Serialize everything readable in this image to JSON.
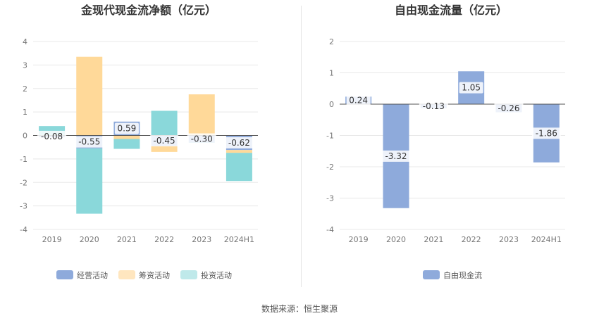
{
  "source_text": "数据来源：恒生聚源",
  "chart_data": [
    {
      "type": "bar",
      "stacked": true,
      "title": "金现代现金流净额（亿元）",
      "categories": [
        "2019",
        "2020",
        "2021",
        "2022",
        "2023",
        "2024H1"
      ],
      "ylim": [
        -4,
        4
      ],
      "yticks": [
        4,
        3,
        2,
        1,
        0,
        -1,
        -2,
        -3,
        -4
      ],
      "legend_position": "bottom",
      "label_series": "经营活动",
      "series": [
        {
          "name": "经营活动",
          "color": "#8eaadb",
          "values": [
            -0.08,
            -0.55,
            0.59,
            -0.45,
            -0.3,
            -0.62
          ]
        },
        {
          "name": "筹资活动",
          "color": "#ffd999",
          "values": [
            0.02,
            3.35,
            -0.15,
            -0.25,
            1.75,
            -0.12
          ]
        },
        {
          "name": "投资活动",
          "color": "#8ad8da",
          "values": [
            0.38,
            -2.78,
            -0.42,
            1.05,
            -0.01,
            -1.2
          ]
        }
      ],
      "data_labels": [
        "-0.08",
        "-0.55",
        "0.59",
        "-0.45",
        "-0.30",
        "-0.62"
      ]
    },
    {
      "type": "bar",
      "title": "自由现金流量（亿元）",
      "categories": [
        "2019",
        "2020",
        "2021",
        "2022",
        "2023",
        "2024H1"
      ],
      "ylim": [
        -4,
        2
      ],
      "yticks": [
        2,
        1,
        0,
        -1,
        -2,
        -3,
        -4
      ],
      "legend_position": "bottom",
      "label_series": "自由现金流",
      "series": [
        {
          "name": "自由现金流",
          "color": "#8eaadb",
          "values": [
            0.24,
            -3.32,
            -0.13,
            1.05,
            -0.26,
            -1.86
          ]
        }
      ],
      "data_labels": [
        "0.24",
        "-3.32",
        "-0.13",
        "1.05",
        "-0.26",
        "-1.86"
      ]
    }
  ]
}
